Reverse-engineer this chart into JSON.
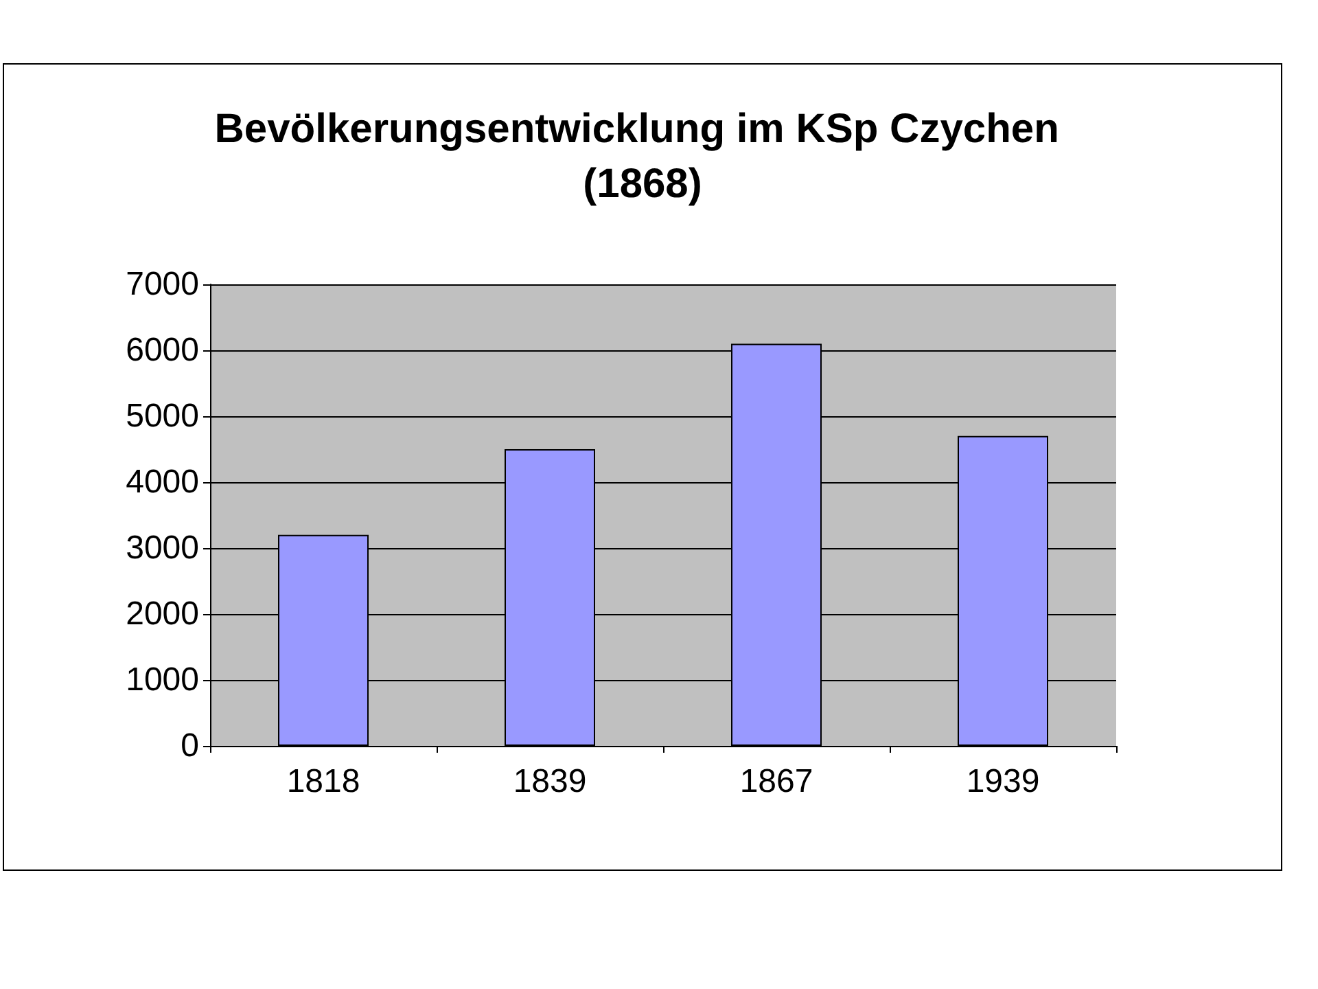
{
  "chart_data": {
    "type": "bar",
    "title": "Bevölkerungsentwicklung im KSp Czychen (1868)",
    "categories": [
      "1818",
      "1839",
      "1867",
      "1939"
    ],
    "values": [
      3200,
      4500,
      6100,
      4700
    ],
    "color": "#9999ff",
    "ylim": [
      0,
      7000
    ],
    "yticks": [
      0,
      1000,
      2000,
      3000,
      4000,
      5000,
      6000,
      7000
    ],
    "grid": "y"
  }
}
